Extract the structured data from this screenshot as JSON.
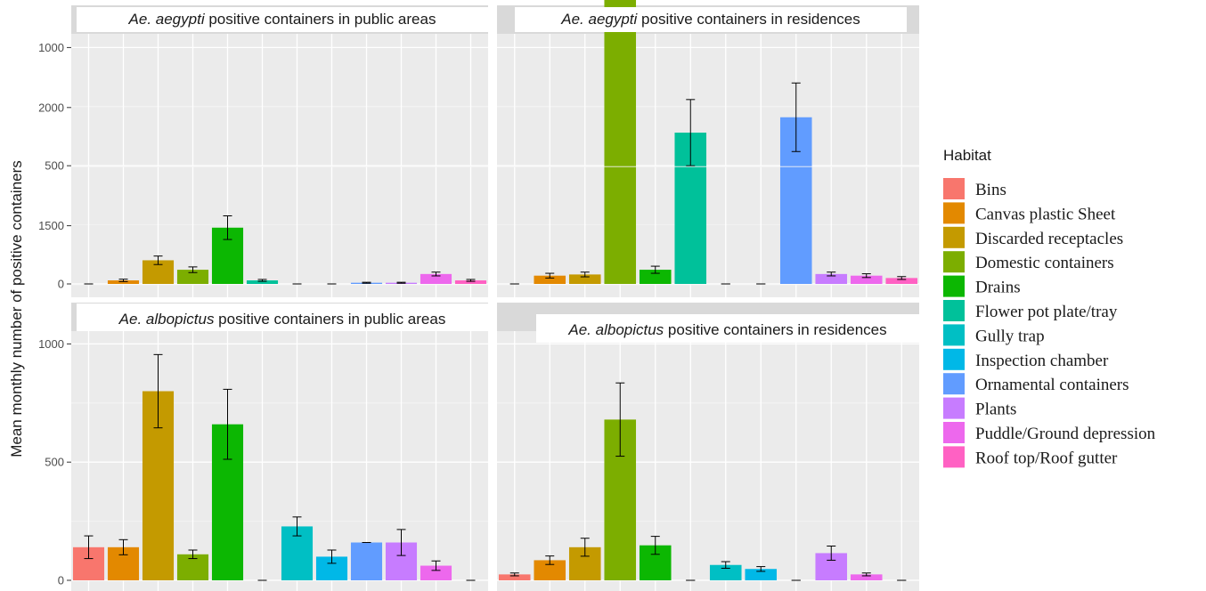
{
  "chart_data": {
    "type": "bar",
    "ylabel": "Mean monthly number of positive containers",
    "xlabel": "",
    "ylim": [
      0,
      2200
    ],
    "y_ticks": [
      0,
      500,
      1000,
      1500,
      2000
    ],
    "y_tick_labels": [
      "0",
      "500",
      "1000",
      "1500",
      "2000"
    ],
    "grid": true,
    "legend": {
      "title": "Habitat",
      "position": "right",
      "colors": [
        "#F8766D",
        "#E38900",
        "#C49A00",
        "#7CAE00",
        "#0CB702",
        "#00C19A",
        "#00BFC4",
        "#00B8E7",
        "#619CFF",
        "#C77CFF",
        "#ED68ED",
        "#FF61C3"
      ]
    },
    "categories": [
      "Bins",
      "Canvas plastic Sheet",
      "Discarded receptacles",
      "Domestic containers",
      "Drains",
      "Flower pot plate/tray",
      "Gully trap",
      "Inspection chamber",
      "Ornamental containers",
      "Plants",
      "Puddle/Ground depression",
      "Roof top/Roof gutter"
    ],
    "panels": [
      {
        "title_italic": "Ae. aegypti",
        "title_rest": " positive containers in public areas",
        "values": [
          0,
          15,
          100,
          60,
          238,
          15,
          0,
          0,
          5,
          5,
          42,
          15
        ],
        "errors": [
          0,
          5,
          18,
          12,
          50,
          4,
          0,
          0,
          2,
          2,
          8,
          4
        ]
      },
      {
        "title_italic": "Ae. aegypti",
        "title_rest": " positive containers in residences",
        "values": [
          0,
          35,
          40,
          1715,
          60,
          640,
          0,
          0,
          705,
          42,
          35,
          25
        ],
        "errors": [
          0,
          10,
          10,
          320,
          15,
          140,
          0,
          0,
          145,
          8,
          8,
          6
        ]
      },
      {
        "title_italic": "Ae. albopictus",
        "title_rest": " positive containers in public areas",
        "values": [
          140,
          140,
          800,
          110,
          660,
          0,
          228,
          100,
          160,
          160,
          62,
          0
        ],
        "errors": [
          48,
          32,
          155,
          18,
          148,
          0,
          40,
          28,
          0,
          55,
          20,
          0
        ]
      },
      {
        "title_italic": "Ae. albopictus",
        "title_rest": " positive containers in residences",
        "values": [
          25,
          85,
          140,
          680,
          148,
          0,
          65,
          48,
          0,
          115,
          25,
          0
        ],
        "errors": [
          6,
          18,
          38,
          155,
          38,
          0,
          14,
          10,
          0,
          30,
          6,
          0
        ]
      }
    ]
  }
}
